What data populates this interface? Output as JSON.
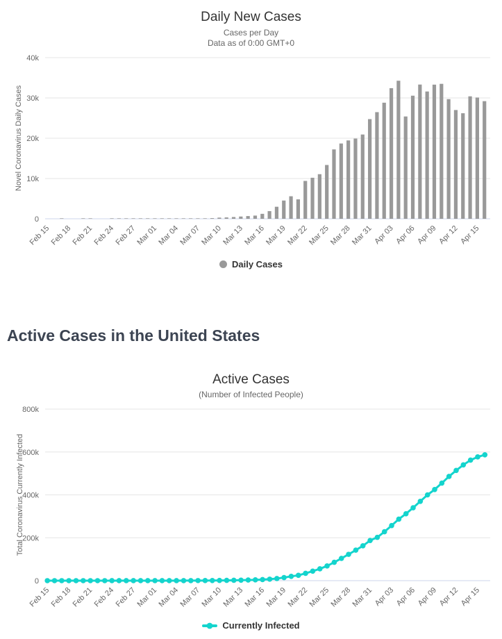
{
  "section_heading": "Active Cases in the United States",
  "colors": {
    "bar": "#999999",
    "line": "#14d4cd",
    "grid": "#e6e6e6",
    "axis_line": "#ccd6eb",
    "title_text": "#333333",
    "subtitle_text": "#666666",
    "heading_text": "#3c4452"
  },
  "chart_data": [
    {
      "type": "bar",
      "title": "Daily New Cases",
      "subtitle_line1": "Cases per Day",
      "subtitle_line2": "Data as of 0:00 GMT+0",
      "ylabel": "Novel Coronavirus Daily Cases",
      "legend": "Daily Cases",
      "color": "#999999",
      "grid": true,
      "legend_position": "bottom",
      "ylim": [
        0,
        40000
      ],
      "yticks": [
        0,
        10000,
        20000,
        30000,
        40000
      ],
      "ytick_labels": [
        "0",
        "10k",
        "20k",
        "30k",
        "40k"
      ],
      "xtick_every": 3,
      "categories": [
        "Feb 15",
        "Feb 16",
        "Feb 17",
        "Feb 18",
        "Feb 19",
        "Feb 20",
        "Feb 21",
        "Feb 22",
        "Feb 23",
        "Feb 24",
        "Feb 25",
        "Feb 26",
        "Feb 27",
        "Feb 28",
        "Feb 29",
        "Mar 01",
        "Mar 02",
        "Mar 03",
        "Mar 04",
        "Mar 05",
        "Mar 06",
        "Mar 07",
        "Mar 08",
        "Mar 09",
        "Mar 10",
        "Mar 11",
        "Mar 12",
        "Mar 13",
        "Mar 14",
        "Mar 15",
        "Mar 16",
        "Mar 17",
        "Mar 18",
        "Mar 19",
        "Mar 20",
        "Mar 21",
        "Mar 22",
        "Mar 23",
        "Mar 24",
        "Mar 25",
        "Mar 26",
        "Mar 27",
        "Mar 28",
        "Mar 29",
        "Mar 30",
        "Mar 31",
        "Apr 01",
        "Apr 02",
        "Apr 03",
        "Apr 04",
        "Apr 05",
        "Apr 06",
        "Apr 07",
        "Apr 08",
        "Apr 09",
        "Apr 10",
        "Apr 11",
        "Apr 12",
        "Apr 13",
        "Apr 14",
        "Apr 15",
        "Apr 16"
      ],
      "values": [
        0,
        0,
        2,
        0,
        0,
        1,
        19,
        0,
        0,
        18,
        4,
        3,
        3,
        1,
        8,
        20,
        14,
        22,
        34,
        59,
        85,
        105,
        120,
        165,
        290,
        338,
        434,
        561,
        678,
        792,
        1231,
        1905,
        2988,
        4530,
        5594,
        4825,
        9400,
        10189,
        11075,
        13355,
        17224,
        18691,
        19452,
        19913,
        20921,
        24742,
        26473,
        28819,
        32425,
        34272,
        25398,
        30561,
        33323,
        31600,
        33300,
        33500,
        29700,
        27000,
        26200,
        30400,
        30100,
        29200
      ]
    },
    {
      "type": "line",
      "title": "Active Cases",
      "subtitle_line1": "(Number of Infected People)",
      "ylabel": "Total Coronavirus Currently Infected",
      "legend": "Currently Infected",
      "color": "#14d4cd",
      "grid": true,
      "legend_position": "bottom",
      "ylim": [
        0,
        800000
      ],
      "yticks": [
        0,
        200000,
        400000,
        600000,
        800000
      ],
      "ytick_labels": [
        "0",
        "200k",
        "400k",
        "600k",
        "800k"
      ],
      "xtick_every": 3,
      "categories": [
        "Feb 15",
        "Feb 16",
        "Feb 17",
        "Feb 18",
        "Feb 19",
        "Feb 20",
        "Feb 21",
        "Feb 22",
        "Feb 23",
        "Feb 24",
        "Feb 25",
        "Feb 26",
        "Feb 27",
        "Feb 28",
        "Feb 29",
        "Mar 01",
        "Mar 02",
        "Mar 03",
        "Mar 04",
        "Mar 05",
        "Mar 06",
        "Mar 07",
        "Mar 08",
        "Mar 09",
        "Mar 10",
        "Mar 11",
        "Mar 12",
        "Mar 13",
        "Mar 14",
        "Mar 15",
        "Mar 16",
        "Mar 17",
        "Mar 18",
        "Mar 19",
        "Mar 20",
        "Mar 21",
        "Mar 22",
        "Mar 23",
        "Mar 24",
        "Mar 25",
        "Mar 26",
        "Mar 27",
        "Mar 28",
        "Mar 29",
        "Mar 30",
        "Mar 31",
        "Apr 01",
        "Apr 02",
        "Apr 03",
        "Apr 04",
        "Apr 05",
        "Apr 06",
        "Apr 07",
        "Apr 08",
        "Apr 09",
        "Apr 10",
        "Apr 11",
        "Apr 12",
        "Apr 13",
        "Apr 14",
        "Apr 15",
        "Apr 16"
      ],
      "values": [
        13,
        13,
        15,
        15,
        15,
        16,
        35,
        35,
        35,
        53,
        57,
        60,
        63,
        64,
        70,
        89,
        103,
        125,
        159,
        218,
        303,
        408,
        528,
        693,
        983,
        1321,
        1755,
        2316,
        2994,
        3786,
        5017,
        6922,
        9910,
        14440,
        20050,
        24880,
        34260,
        44440,
        55310,
        68570,
        85640,
        103900,
        122700,
        142200,
        162600,
        187300,
        202000,
        228000,
        257000,
        287000,
        312000,
        340000,
        370000,
        400000,
        425000,
        455000,
        486000,
        514000,
        540000,
        562000,
        577000,
        587000
      ]
    }
  ]
}
